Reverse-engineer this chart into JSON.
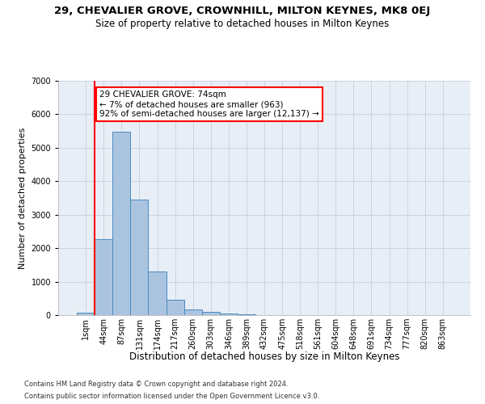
{
  "title1": "29, CHEVALIER GROVE, CROWNHILL, MILTON KEYNES, MK8 0EJ",
  "title2": "Size of property relative to detached houses in Milton Keynes",
  "xlabel": "Distribution of detached houses by size in Milton Keynes",
  "ylabel": "Number of detached properties",
  "footnote1": "Contains HM Land Registry data © Crown copyright and database right 2024.",
  "footnote2": "Contains public sector information licensed under the Open Government Licence v3.0.",
  "bar_labels": [
    "1sqm",
    "44sqm",
    "87sqm",
    "131sqm",
    "174sqm",
    "217sqm",
    "260sqm",
    "303sqm",
    "346sqm",
    "389sqm",
    "432sqm",
    "475sqm",
    "518sqm",
    "561sqm",
    "604sqm",
    "648sqm",
    "691sqm",
    "734sqm",
    "777sqm",
    "820sqm",
    "863sqm"
  ],
  "bar_values": [
    75,
    2280,
    5480,
    3450,
    1310,
    460,
    165,
    90,
    55,
    25,
    0,
    0,
    0,
    0,
    0,
    0,
    0,
    0,
    0,
    0,
    0
  ],
  "bar_color": "#aac4e0",
  "bar_edge_color": "#4a8abf",
  "annotation_text": "29 CHEVALIER GROVE: 74sqm\n← 7% of detached houses are smaller (963)\n92% of semi-detached houses are larger (12,137) →",
  "annotation_box_color": "white",
  "annotation_border_color": "red",
  "vline_x": 0.5,
  "vline_color": "red",
  "ylim": [
    0,
    7000
  ],
  "grid_color": "#c8d0dc",
  "bg_color": "#e8eef6",
  "title1_fontsize": 9.5,
  "title2_fontsize": 8.5,
  "xlabel_fontsize": 8.5,
  "ylabel_fontsize": 8,
  "tick_fontsize": 7,
  "annot_fontsize": 7.5,
  "footnote_fontsize": 6
}
